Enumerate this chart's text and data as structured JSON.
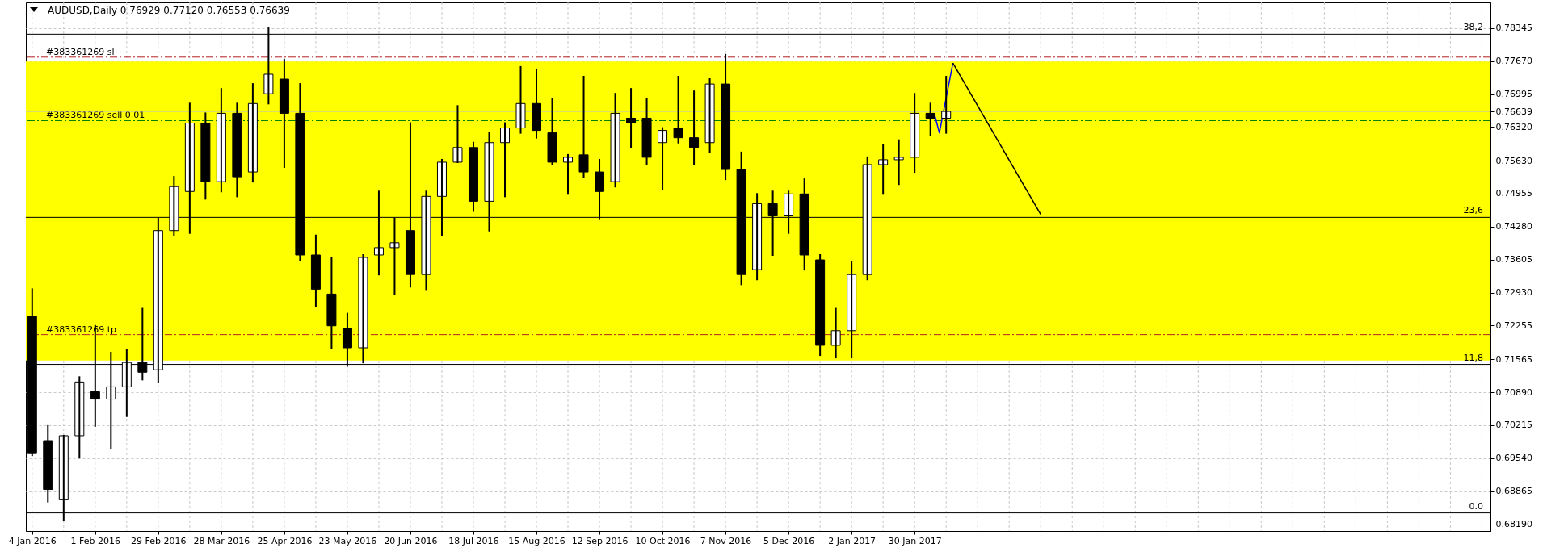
{
  "chart_data": {
    "type": "candlestick",
    "title": "AUDUSD,Daily  0.76929 0.77120 0.76553 0.76639",
    "x": [
      "2016-01-04",
      "2016-01-11",
      "2016-01-18",
      "2016-01-25",
      "2016-02-01",
      "2016-02-08",
      "2016-02-15",
      "2016-02-22",
      "2016-02-29",
      "2016-03-07",
      "2016-03-14",
      "2016-03-21",
      "2016-03-28",
      "2016-04-04",
      "2016-04-11",
      "2016-04-18",
      "2016-04-25",
      "2016-05-02",
      "2016-05-09",
      "2016-05-16",
      "2016-05-23",
      "2016-05-30",
      "2016-06-06",
      "2016-06-13",
      "2016-06-20",
      "2016-06-27",
      "2016-07-04",
      "2016-07-11",
      "2016-07-18",
      "2016-07-25",
      "2016-08-01",
      "2016-08-08",
      "2016-08-15",
      "2016-08-22",
      "2016-08-29",
      "2016-09-05",
      "2016-09-12",
      "2016-09-19",
      "2016-09-26",
      "2016-10-03",
      "2016-10-10",
      "2016-10-17",
      "2016-10-24",
      "2016-10-31",
      "2016-11-07",
      "2016-11-14",
      "2016-11-21",
      "2016-11-28",
      "2016-12-05",
      "2016-12-12",
      "2016-12-19",
      "2016-12-26",
      "2017-01-02",
      "2017-01-09",
      "2017-01-16",
      "2017-01-23",
      "2017-01-30",
      "2017-02-06",
      "2017-02-13"
    ],
    "ohlc": [
      [
        0.7245,
        0.73,
        0.696,
        0.6965
      ],
      [
        0.699,
        0.702,
        0.6865,
        0.689
      ],
      [
        0.687,
        0.7,
        0.6827,
        0.7
      ],
      [
        0.7,
        0.712,
        0.6955,
        0.711
      ],
      [
        0.709,
        0.7225,
        0.702,
        0.7075
      ],
      [
        0.7075,
        0.717,
        0.6975,
        0.71
      ],
      [
        0.71,
        0.7175,
        0.704,
        0.715
      ],
      [
        0.715,
        0.726,
        0.7115,
        0.713
      ],
      [
        0.7135,
        0.7445,
        0.711,
        0.742
      ],
      [
        0.742,
        0.753,
        0.741,
        0.751
      ],
      [
        0.75,
        0.768,
        0.7415,
        0.764
      ],
      [
        0.764,
        0.766,
        0.7485,
        0.752
      ],
      [
        0.752,
        0.771,
        0.75,
        0.766
      ],
      [
        0.766,
        0.768,
        0.749,
        0.753
      ],
      [
        0.754,
        0.772,
        0.752,
        0.768
      ],
      [
        0.77,
        0.7835,
        0.768,
        0.774
      ],
      [
        0.773,
        0.777,
        0.755,
        0.766
      ],
      [
        0.766,
        0.772,
        0.736,
        0.737
      ],
      [
        0.737,
        0.741,
        0.7265,
        0.73
      ],
      [
        0.729,
        0.7365,
        0.718,
        0.7225
      ],
      [
        0.722,
        0.725,
        0.7143,
        0.718
      ],
      [
        0.718,
        0.737,
        0.715,
        0.7365
      ],
      [
        0.737,
        0.75,
        0.733,
        0.7385
      ],
      [
        0.7385,
        0.7445,
        0.729,
        0.7395
      ],
      [
        0.742,
        0.764,
        0.7305,
        0.733
      ],
      [
        0.733,
        0.75,
        0.73,
        0.749
      ],
      [
        0.749,
        0.7565,
        0.741,
        0.756
      ],
      [
        0.756,
        0.7675,
        0.756,
        0.759
      ],
      [
        0.759,
        0.76,
        0.746,
        0.748
      ],
      [
        0.748,
        0.762,
        0.742,
        0.76
      ],
      [
        0.76,
        0.764,
        0.749,
        0.763
      ],
      [
        0.763,
        0.7755,
        0.762,
        0.768
      ],
      [
        0.768,
        0.775,
        0.761,
        0.7625
      ],
      [
        0.762,
        0.769,
        0.7555,
        0.756
      ],
      [
        0.756,
        0.7575,
        0.7495,
        0.757
      ],
      [
        0.7575,
        0.7735,
        0.753,
        0.754
      ],
      [
        0.754,
        0.7565,
        0.7445,
        0.75
      ],
      [
        0.752,
        0.77,
        0.751,
        0.766
      ],
      [
        0.765,
        0.771,
        0.759,
        0.764
      ],
      [
        0.765,
        0.769,
        0.7555,
        0.757
      ],
      [
        0.76,
        0.763,
        0.7505,
        0.7625
      ],
      [
        0.763,
        0.7735,
        0.76,
        0.761
      ],
      [
        0.761,
        0.7705,
        0.7555,
        0.759
      ],
      [
        0.76,
        0.773,
        0.758,
        0.772
      ],
      [
        0.772,
        0.778,
        0.7525,
        0.7545
      ],
      [
        0.7545,
        0.758,
        0.731,
        0.733
      ],
      [
        0.734,
        0.7495,
        0.732,
        0.7475
      ],
      [
        0.7475,
        0.75,
        0.737,
        0.745
      ],
      [
        0.745,
        0.75,
        0.7415,
        0.7495
      ],
      [
        0.7495,
        0.7525,
        0.734,
        0.737
      ],
      [
        0.736,
        0.737,
        0.7165,
        0.7185
      ],
      [
        0.7185,
        0.726,
        0.716,
        0.7215
      ],
      [
        0.7215,
        0.7355,
        0.716,
        0.733
      ],
      [
        0.733,
        0.757,
        0.732,
        0.7555
      ],
      [
        0.7555,
        0.7595,
        0.7495,
        0.7565
      ],
      [
        0.7565,
        0.7605,
        0.7515,
        0.757
      ],
      [
        0.757,
        0.77,
        0.754,
        0.766
      ],
      [
        0.766,
        0.768,
        0.7615,
        0.765
      ],
      [
        0.765,
        0.7735,
        0.762,
        0.76639
      ]
    ],
    "series": [
      {
        "type": "line",
        "color": "#0000ff",
        "x": [
          "2017-02-08",
          "2017-02-10",
          "2017-02-16"
        ],
        "values": [
          0.7655,
          0.762,
          0.7763
        ]
      },
      {
        "type": "line",
        "color": "#000000",
        "x": [
          "2017-02-16",
          "2017-03-27"
        ],
        "values": [
          0.7763,
          0.7453
        ]
      }
    ],
    "xlim": [
      "2016-01-03",
      "2017-10-11"
    ],
    "xticks": [
      {
        "value": "2016-01-04",
        "label": "4 Jan 2016"
      },
      {
        "value": "2016-01-18",
        "label": null
      },
      {
        "value": "2016-02-01",
        "label": "1 Feb 2016"
      },
      {
        "value": "2016-02-15",
        "label": null
      },
      {
        "value": "2016-02-29",
        "label": "29 Feb 2016"
      },
      {
        "value": "2016-03-14",
        "label": null
      },
      {
        "value": "2016-03-28",
        "label": "28 Mar 2016"
      },
      {
        "value": "2016-04-11",
        "label": null
      },
      {
        "value": "2016-04-25",
        "label": "25 Apr 2016"
      },
      {
        "value": "2016-05-09",
        "label": null
      },
      {
        "value": "2016-05-23",
        "label": "23 May 2016"
      },
      {
        "value": "2016-06-06",
        "label": null
      },
      {
        "value": "2016-06-20",
        "label": "20 Jun 2016"
      },
      {
        "value": "2016-07-04",
        "label": null
      },
      {
        "value": "2016-07-18",
        "label": "18 Jul 2016"
      },
      {
        "value": "2016-08-01",
        "label": null
      },
      {
        "value": "2016-08-15",
        "label": "15 Aug 2016"
      },
      {
        "value": "2016-08-29",
        "label": null
      },
      {
        "value": "2016-09-12",
        "label": "12 Sep 2016"
      },
      {
        "value": "2016-09-26",
        "label": null
      },
      {
        "value": "2016-10-10",
        "label": "10 Oct 2016"
      },
      {
        "value": "2016-10-24",
        "label": null
      },
      {
        "value": "2016-11-07",
        "label": "7 Nov 2016"
      },
      {
        "value": "2016-11-21",
        "label": null
      },
      {
        "value": "2016-12-05",
        "label": "5 Dec 2016"
      },
      {
        "value": "2016-12-19",
        "label": null
      },
      {
        "value": "2017-01-02",
        "label": "2 Jan 2017"
      },
      {
        "value": "2017-01-16",
        "label": null
      },
      {
        "value": "2017-01-30",
        "label": "30 Jan 2017"
      },
      {
        "value": "2017-02-13",
        "label": null
      },
      {
        "value": "2017-02-27",
        "label": null
      },
      {
        "value": "2017-03-13",
        "label": null
      },
      {
        "value": "2017-03-27",
        "label": null
      },
      {
        "value": "2017-04-10",
        "label": null
      },
      {
        "value": "2017-04-24",
        "label": null
      },
      {
        "value": "2017-05-08",
        "label": null
      },
      {
        "value": "2017-05-22",
        "label": null
      },
      {
        "value": "2017-06-05",
        "label": null
      },
      {
        "value": "2017-06-19",
        "label": null
      },
      {
        "value": "2017-07-03",
        "label": null
      },
      {
        "value": "2017-07-17",
        "label": null
      },
      {
        "value": "2017-07-31",
        "label": null
      },
      {
        "value": "2017-08-14",
        "label": null
      },
      {
        "value": "2017-08-28",
        "label": null
      },
      {
        "value": "2017-09-11",
        "label": null
      },
      {
        "value": "2017-09-25",
        "label": null
      },
      {
        "value": "2017-10-09",
        "label": null
      }
    ],
    "ylim": [
      0.6805,
      0.7887
    ],
    "yticks": [
      {
        "value": 0.6819,
        "label": "0.68190"
      },
      {
        "value": 0.68865,
        "label": "0.68865"
      },
      {
        "value": 0.6954,
        "label": "0.69540"
      },
      {
        "value": 0.70215,
        "label": "0.70215"
      },
      {
        "value": 0.7089,
        "label": "0.70890"
      },
      {
        "value": 0.71565,
        "label": "0.71565"
      },
      {
        "value": 0.72255,
        "label": "0.72255"
      },
      {
        "value": 0.7293,
        "label": "0.72930"
      },
      {
        "value": 0.73605,
        "label": "0.73605"
      },
      {
        "value": 0.7428,
        "label": "0.74280"
      },
      {
        "value": 0.74955,
        "label": "0.74955"
      },
      {
        "value": 0.7563,
        "label": "0.75630"
      },
      {
        "value": 0.7632,
        "label": "0.76320"
      },
      {
        "value": 0.76639,
        "label": "0.76639"
      },
      {
        "value": 0.76995,
        "label": "0.76995"
      },
      {
        "value": 0.7767,
        "label": "0.77670"
      },
      {
        "value": 0.78345,
        "label": "0.78345"
      }
    ],
    "grid": true,
    "bands": [
      {
        "axis": "y",
        "from": 0.7154,
        "to": 0.7766,
        "label": null,
        "color": "#ffff00"
      }
    ],
    "ref_lines": [
      {
        "axis": "y",
        "value": 0.7822,
        "label": null,
        "color": "#000000",
        "line_style": "solid"
      },
      {
        "axis": "y",
        "value": 0.7447,
        "label": null,
        "color": "#000000",
        "line_style": "solid"
      },
      {
        "axis": "y",
        "value": 0.7146,
        "label": null,
        "color": "#000000",
        "line_style": "solid"
      },
      {
        "axis": "y",
        "value": 0.6842,
        "label": null,
        "color": "#000000",
        "line_style": "solid"
      },
      {
        "axis": "y",
        "value": 0.7775,
        "label": "#383361269 sl",
        "color": "#b22222",
        "line_style": "dashed"
      },
      {
        "axis": "y",
        "value": 0.7645,
        "label": "#383361269 sell 0.01",
        "color": "#008000",
        "line_style": "dashed"
      },
      {
        "axis": "y",
        "value": 0.7207,
        "label": "#383361269 tp",
        "color": "#b22222",
        "line_style": "dashed"
      },
      {
        "axis": "y",
        "value": 0.76639,
        "label": null,
        "color": "#c0c0c0",
        "line_style": "solid"
      }
    ],
    "annotations": [
      "38,2",
      "23,6",
      "11,8",
      "0.0"
    ],
    "marker": "none",
    "line_style": "solid"
  }
}
